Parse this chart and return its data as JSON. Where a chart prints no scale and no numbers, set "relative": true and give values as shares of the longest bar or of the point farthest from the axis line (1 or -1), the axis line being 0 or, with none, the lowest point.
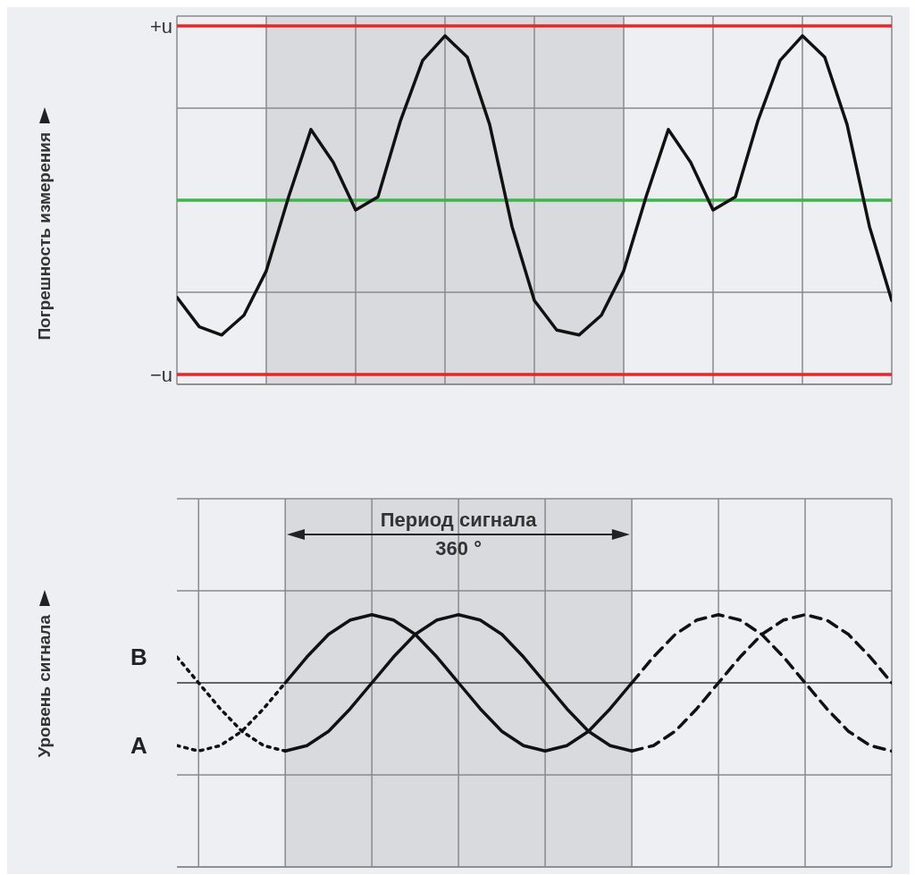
{
  "chart_data": [
    {
      "type": "line",
      "ylabel": "Погрешность измерения",
      "relative": true,
      "categories": [
        null,
        null,
        null,
        null,
        null,
        null,
        null,
        null,
        null,
        null,
        null,
        null,
        null,
        null,
        null,
        null,
        null,
        null,
        null,
        null,
        null,
        null,
        null,
        null,
        null,
        null,
        null,
        null,
        null,
        null,
        null,
        null,
        null
      ],
      "grid": true,
      "legend": false,
      "marker": "none",
      "ref_lines": [
        {
          "axis": "y",
          "value": 1.06,
          "label": "+u",
          "color": "#e8262a"
        },
        {
          "axis": "y",
          "value": -1.06,
          "label": "−u",
          "color": "#e8262a"
        },
        {
          "axis": "y",
          "value": 0,
          "color": "#3cb54a"
        }
      ],
      "series": [
        {
          "color": "#111111",
          "line_style": "solid",
          "values": [
            -0.59,
            -0.77,
            -0.82,
            -0.7,
            -0.43,
            0.02,
            0.43,
            0.23,
            -0.06,
            0.02,
            0.48,
            0.85,
            1,
            0.87,
            0.46,
            -0.16,
            -0.61,
            -0.79,
            -0.82,
            -0.7,
            -0.43,
            0.02,
            0.43,
            0.23,
            -0.06,
            0.02,
            0.48,
            0.85,
            1,
            0.87,
            0.46,
            -0.16,
            -0.61
          ]
        }
      ]
    },
    {
      "type": "line",
      "ylabel": "Уровень сигнала",
      "relative": true,
      "categories": [
        null,
        null,
        null,
        null,
        null,
        null,
        null,
        null,
        null,
        null,
        null,
        null,
        null,
        null,
        null,
        null,
        null,
        null,
        null,
        null,
        null,
        null,
        null,
        null,
        null,
        null,
        null,
        null,
        null,
        null,
        null,
        null,
        null,
        null
      ],
      "grid": true,
      "legend": false,
      "marker": "none",
      "annotations": [
        "Период сигнала\n360 °"
      ],
      "series": [
        {
          "name": "B",
          "color": "#111111",
          "line_style": "dotted",
          "values": [
            0.38,
            0,
            -0.38,
            -0.71,
            -0.92,
            -1,
            null,
            null,
            null,
            null,
            null,
            null,
            null,
            null,
            null,
            null,
            null,
            null,
            null,
            null,
            null,
            null,
            null,
            null,
            null,
            null,
            null,
            null,
            null,
            null,
            null,
            null,
            null,
            null
          ]
        },
        {
          "color": "#111111",
          "line_style": "solid",
          "values": [
            null,
            null,
            null,
            null,
            null,
            -1,
            -0.92,
            -0.71,
            -0.38,
            0,
            0.38,
            0.71,
            0.92,
            1,
            0.92,
            0.71,
            0.38,
            0,
            -0.38,
            -0.71,
            -0.92,
            -1,
            null,
            null,
            null,
            null,
            null,
            null,
            null,
            null,
            null,
            null,
            null,
            null
          ]
        },
        {
          "color": "#111111",
          "line_style": "dashed",
          "values": [
            null,
            null,
            null,
            null,
            null,
            null,
            null,
            null,
            null,
            null,
            null,
            null,
            null,
            null,
            null,
            null,
            null,
            null,
            null,
            null,
            null,
            -1,
            -0.92,
            -0.71,
            -0.38,
            0,
            0.38,
            0.71,
            0.92,
            1,
            0.92,
            0.71,
            0.38,
            0
          ]
        },
        {
          "name": "A",
          "color": "#111111",
          "line_style": "dotted",
          "values": [
            -0.92,
            -1,
            -0.92,
            -0.71,
            -0.38,
            0,
            null,
            null,
            null,
            null,
            null,
            null,
            null,
            null,
            null,
            null,
            null,
            null,
            null,
            null,
            null,
            null,
            null,
            null,
            null,
            null,
            null,
            null,
            null,
            null,
            null,
            null,
            null,
            null
          ]
        },
        {
          "color": "#111111",
          "line_style": "solid",
          "values": [
            null,
            null,
            null,
            null,
            null,
            0,
            0.38,
            0.71,
            0.92,
            1,
            0.92,
            0.71,
            0.38,
            0,
            -0.38,
            -0.71,
            -0.92,
            -1,
            -0.92,
            -0.71,
            -0.38,
            0,
            null,
            null,
            null,
            null,
            null,
            null,
            null,
            null,
            null,
            null,
            null,
            null
          ]
        },
        {
          "color": "#111111",
          "line_style": "dashed",
          "values": [
            null,
            null,
            null,
            null,
            null,
            null,
            null,
            null,
            null,
            null,
            null,
            null,
            null,
            null,
            null,
            null,
            null,
            null,
            null,
            null,
            null,
            0,
            0.38,
            0.71,
            0.92,
            1,
            0.92,
            0.71,
            0.38,
            0,
            -0.38,
            -0.71,
            -0.92,
            -1
          ]
        }
      ]
    }
  ]
}
